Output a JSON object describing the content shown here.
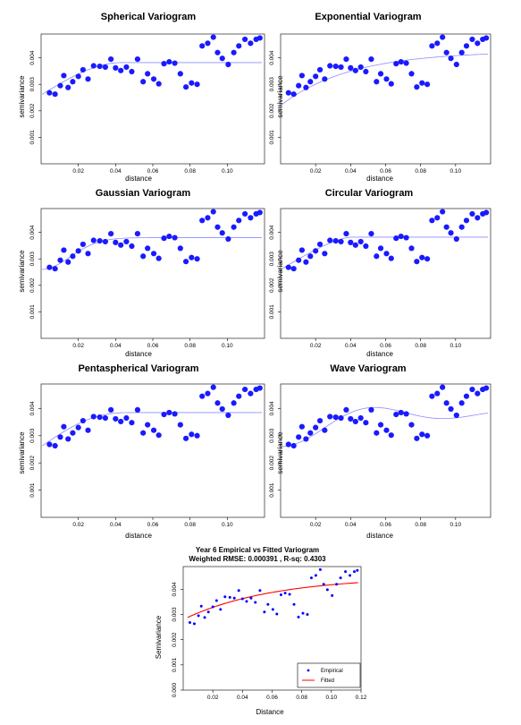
{
  "chart_data": [
    {
      "type": "scatter",
      "title": "Spherical Variogram",
      "xlabel": "distance",
      "ylabel": "semivariance",
      "xlim": [
        0.0,
        0.12
      ],
      "ylim": [
        0.0,
        0.0049
      ],
      "xticks": [
        "0.02",
        "0.04",
        "0.06",
        "0.08",
        "0.10"
      ],
      "yticks": [
        "0.001",
        "0.002",
        "0.003",
        "0.004"
      ],
      "series": [
        {
          "role": "empirical",
          "x": [
            0.0045,
            0.0075,
            0.0103,
            0.0122,
            0.0145,
            0.017,
            0.02,
            0.0225,
            0.0252,
            0.0282,
            0.0315,
            0.0345,
            0.0375,
            0.04,
            0.0428,
            0.0458,
            0.0487,
            0.0518,
            0.0548,
            0.0572,
            0.0605,
            0.0632,
            0.066,
            0.0688,
            0.0718,
            0.0748,
            0.0778,
            0.0808,
            0.0838,
            0.0865,
            0.0895,
            0.0925,
            0.0948,
            0.0973,
            0.1005,
            0.1035,
            0.1062,
            0.1095,
            0.1125,
            0.1155,
            0.1175
          ],
          "y": [
            0.00268,
            0.00263,
            0.00295,
            0.00333,
            0.00288,
            0.0031,
            0.0033,
            0.00355,
            0.0032,
            0.0037,
            0.00368,
            0.00365,
            0.00395,
            0.00362,
            0.00352,
            0.00365,
            0.00348,
            0.00395,
            0.0031,
            0.0034,
            0.0032,
            0.00302,
            0.00378,
            0.00385,
            0.0038,
            0.0034,
            0.0029,
            0.00305,
            0.003,
            0.00445,
            0.00455,
            0.00478,
            0.0042,
            0.00398,
            0.00375,
            0.0042,
            0.00445,
            0.0047,
            0.00455,
            0.0047,
            0.00475
          ]
        },
        {
          "role": "fitted",
          "kind": "spherical",
          "nugget": 0.0026,
          "sill": 0.00382,
          "range": 0.043
        }
      ]
    },
    {
      "type": "scatter",
      "title": "Exponential Variogram",
      "xlabel": "distance",
      "ylabel": "semivariance",
      "xlim": [
        0.0,
        0.12
      ],
      "ylim": [
        0.0,
        0.0049
      ],
      "xticks": [
        "0.02",
        "0.04",
        "0.06",
        "0.08",
        "0.10"
      ],
      "yticks": [
        "0.001",
        "0.002",
        "0.003",
        "0.004"
      ],
      "series": [
        {
          "role": "empirical",
          "same_as": 0
        },
        {
          "role": "fitted",
          "kind": "exponential",
          "nugget": 0.0022,
          "sill": 0.00425,
          "range": 0.04
        }
      ]
    },
    {
      "type": "scatter",
      "title": "Gaussian Variogram",
      "xlabel": "distance",
      "ylabel": "semivariance",
      "xlim": [
        0.0,
        0.12
      ],
      "ylim": [
        0.0,
        0.0049
      ],
      "xticks": [
        "0.02",
        "0.04",
        "0.06",
        "0.08",
        "0.10"
      ],
      "yticks": [
        "0.001",
        "0.002",
        "0.003",
        "0.004"
      ],
      "series": [
        {
          "role": "empirical",
          "same_as": 0
        },
        {
          "role": "fitted",
          "kind": "gaussian",
          "nugget": 0.0026,
          "sill": 0.0038,
          "range": 0.022
        }
      ]
    },
    {
      "type": "scatter",
      "title": "Circular Variogram",
      "xlabel": "distance",
      "ylabel": "semivariance",
      "xlim": [
        0.0,
        0.12
      ],
      "ylim": [
        0.0,
        0.0049
      ],
      "xticks": [
        "0.02",
        "0.04",
        "0.06",
        "0.08",
        "0.10"
      ],
      "yticks": [
        "0.001",
        "0.002",
        "0.003",
        "0.004"
      ],
      "series": [
        {
          "role": "empirical",
          "same_as": 0
        },
        {
          "role": "fitted",
          "kind": "circular",
          "nugget": 0.0026,
          "sill": 0.00382,
          "range": 0.04
        }
      ]
    },
    {
      "type": "scatter",
      "title": "Pentaspherical Variogram",
      "xlabel": "distance",
      "ylabel": "semivariance",
      "xlim": [
        0.0,
        0.12
      ],
      "ylim": [
        0.0,
        0.0049
      ],
      "xticks": [
        "0.02",
        "0.04",
        "0.06",
        "0.08",
        "0.10"
      ],
      "yticks": [
        "0.001",
        "0.002",
        "0.003",
        "0.004"
      ],
      "series": [
        {
          "role": "empirical",
          "same_as": 0
        },
        {
          "role": "fitted",
          "kind": "pentaspherical",
          "nugget": 0.0026,
          "sill": 0.00385,
          "range": 0.05
        }
      ]
    },
    {
      "type": "scatter",
      "title": "Wave Variogram",
      "xlabel": "distance",
      "ylabel": "semivariance",
      "xlim": [
        0.0,
        0.12
      ],
      "ylim": [
        0.0,
        0.0049
      ],
      "xticks": [
        "0.02",
        "0.04",
        "0.06",
        "0.08",
        "0.10"
      ],
      "yticks": [
        "0.001",
        "0.002",
        "0.003",
        "0.004"
      ],
      "series": [
        {
          "role": "empirical",
          "same_as": 0
        },
        {
          "role": "fitted",
          "kind": "wave",
          "nugget": 0.0026,
          "sill": 0.00378,
          "range": 0.012
        }
      ]
    },
    {
      "type": "scatter",
      "title": "Year 6 Empirical vs Fitted Variogram",
      "subtitle": "Weighted RMSE: 0.000391 , R-sq: 0.4303",
      "xlabel": "Distance",
      "ylabel": "Semivariance",
      "xlim": [
        0.0,
        0.12
      ],
      "ylim": [
        0.0,
        0.0049
      ],
      "xticks": [
        "0.02",
        "0.04",
        "0.06",
        "0.08",
        "0.10",
        "0.12"
      ],
      "yticks": [
        "0.000",
        "0.001",
        "0.002",
        "0.003",
        "0.004"
      ],
      "legend": {
        "position": "bottom-right",
        "entries": [
          "Empirical",
          "Fitted"
        ]
      },
      "series": [
        {
          "name": "Empirical",
          "color": "#0000ff",
          "same_as": 0
        },
        {
          "name": "Fitted",
          "color": "#ff0000",
          "kind": "exponential",
          "nugget": 0.0028,
          "sill": 0.0045,
          "range": 0.06
        }
      ]
    }
  ],
  "colors": {
    "points": "#1a1aff",
    "fit_line": "#8c8cff",
    "fitted_red": "#ff0000",
    "empirical_blue": "#0000ff"
  }
}
